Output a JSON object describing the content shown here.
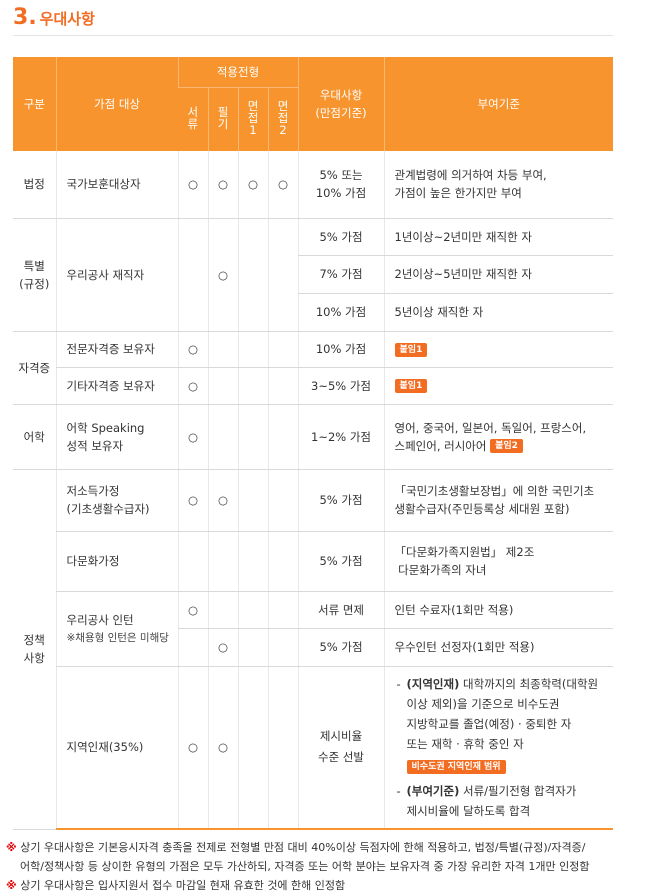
{
  "section": {
    "number": "3",
    "dot": ".",
    "title": "우대사항"
  },
  "header": {
    "col_category": "구분",
    "col_target": "가점 대상",
    "col_apply": "적용전형",
    "apply_cols": [
      "서\n류",
      "필\n기",
      "면\n접\n1",
      "면\n접\n2"
    ],
    "col_pref_line1": "우대사항",
    "col_pref_line2": "(만점기준)",
    "col_criteria": "부여기준"
  },
  "rows": {
    "legal": {
      "category": "법정",
      "target": "국가보훈대상자",
      "marks": [
        "○",
        "○",
        "○",
        "○"
      ],
      "pref": "5% 또는\n10% 가점",
      "criteria": "관계법령에 의거하여 차등 부여,\n가점이 높은 한가지만 부여"
    },
    "special": {
      "category": "특별\n(규정)",
      "target": "우리공사 재직자",
      "mark_written": "○",
      "sub": [
        {
          "pref": "5% 가점",
          "criteria": "1년이상~2년미만 재직한 자"
        },
        {
          "pref": "7% 가점",
          "criteria": "2년이상~5년미만 재직한 자"
        },
        {
          "pref": "10% 가점",
          "criteria": "5년이상 재직한 자"
        }
      ]
    },
    "cert": {
      "category": "자격증",
      "sub": [
        {
          "target": "전문자격증 보유자",
          "mark": "○",
          "pref": "10% 가점",
          "badge": "붙임1"
        },
        {
          "target": "기타자격증 보유자",
          "mark": "○",
          "pref": "3~5% 가점",
          "badge": "붙임1"
        }
      ]
    },
    "lang": {
      "category": "어학",
      "target": "어학 Speaking\n성적 보유자",
      "mark": "○",
      "pref": "1~2% 가점",
      "criteria_line1": "영어, 중국어, 일본어, 독일어, 프랑스어,",
      "criteria_line2": "스페인어, 러시아어",
      "badge": "붙임2"
    },
    "policy": {
      "category": "정책\n사항",
      "low_income": {
        "target": "저소득가정\n(기초생활수급자)",
        "marks": [
          "○",
          "○"
        ],
        "pref": "5% 가점",
        "criteria": "「국민기초생활보장법」에 의한 국민기초\n생활수급자(주민등록상 세대원 포함)"
      },
      "multicultural": {
        "target": "다문화가정",
        "pref": "5% 가점",
        "criteria": "「다문화가족지원법」 제2조\n 다문화가족의 자녀"
      },
      "intern": {
        "target": "우리공사 인턴",
        "target_note": "※채용형 인턴은 미해당",
        "sub": [
          {
            "mark_col": 0,
            "mark": "○",
            "pref": "서류 면제",
            "criteria": "인턴 수료자(1회만 적용)"
          },
          {
            "mark_col": 1,
            "mark": "○",
            "pref": "5% 가점",
            "criteria": "우수인턴 선정자(1회만 적용)"
          }
        ]
      },
      "regional": {
        "target": "지역인재(35%)",
        "marks": [
          "○",
          "○"
        ],
        "pref": "제시비율\n수준 선발",
        "item1_dash": "-",
        "item1_bold": "(지역인재)",
        "item1_text": " 대학까지의 최종학력(대학원\n이상 제외)을 기준으로 비수도권\n지방학교를 졸업(예정) · 중퇴한 자\n또는 재학 · 휴학 중인 자",
        "item1_badge": "비수도권 지역인재 범위",
        "item2_dash": "-",
        "item2_bold": "(부여기준)",
        "item2_text": " 서류/필기전형 합격자가\n제시비율에 달하도록 합격"
      }
    }
  },
  "notes": {
    "n1_mark": "※",
    "n1_line1": " 상기 우대사항은 기본응시자격 충족을 전제로 전형별 만점 대비 40%이상 득점자에 한해 적용하고, 법정/특별(규정)/자격증/",
    "n1_line2": "어학/정책사항 등 상이한 유형의 가점은 모두 가산하되, 자격증 또는 어학 분야는 보유자격 중 가장 유리한 자격 1개만 인정함",
    "n2_mark": "※",
    "n2_text": " 상기 우대사항은 입사지원서 접수 마감일 현재 유효한 것에 한해 인정함"
  },
  "colors": {
    "accent": "#f7942d",
    "title": "#f26c22",
    "badge": "#f26c22",
    "note_mark": "#e00000"
  }
}
